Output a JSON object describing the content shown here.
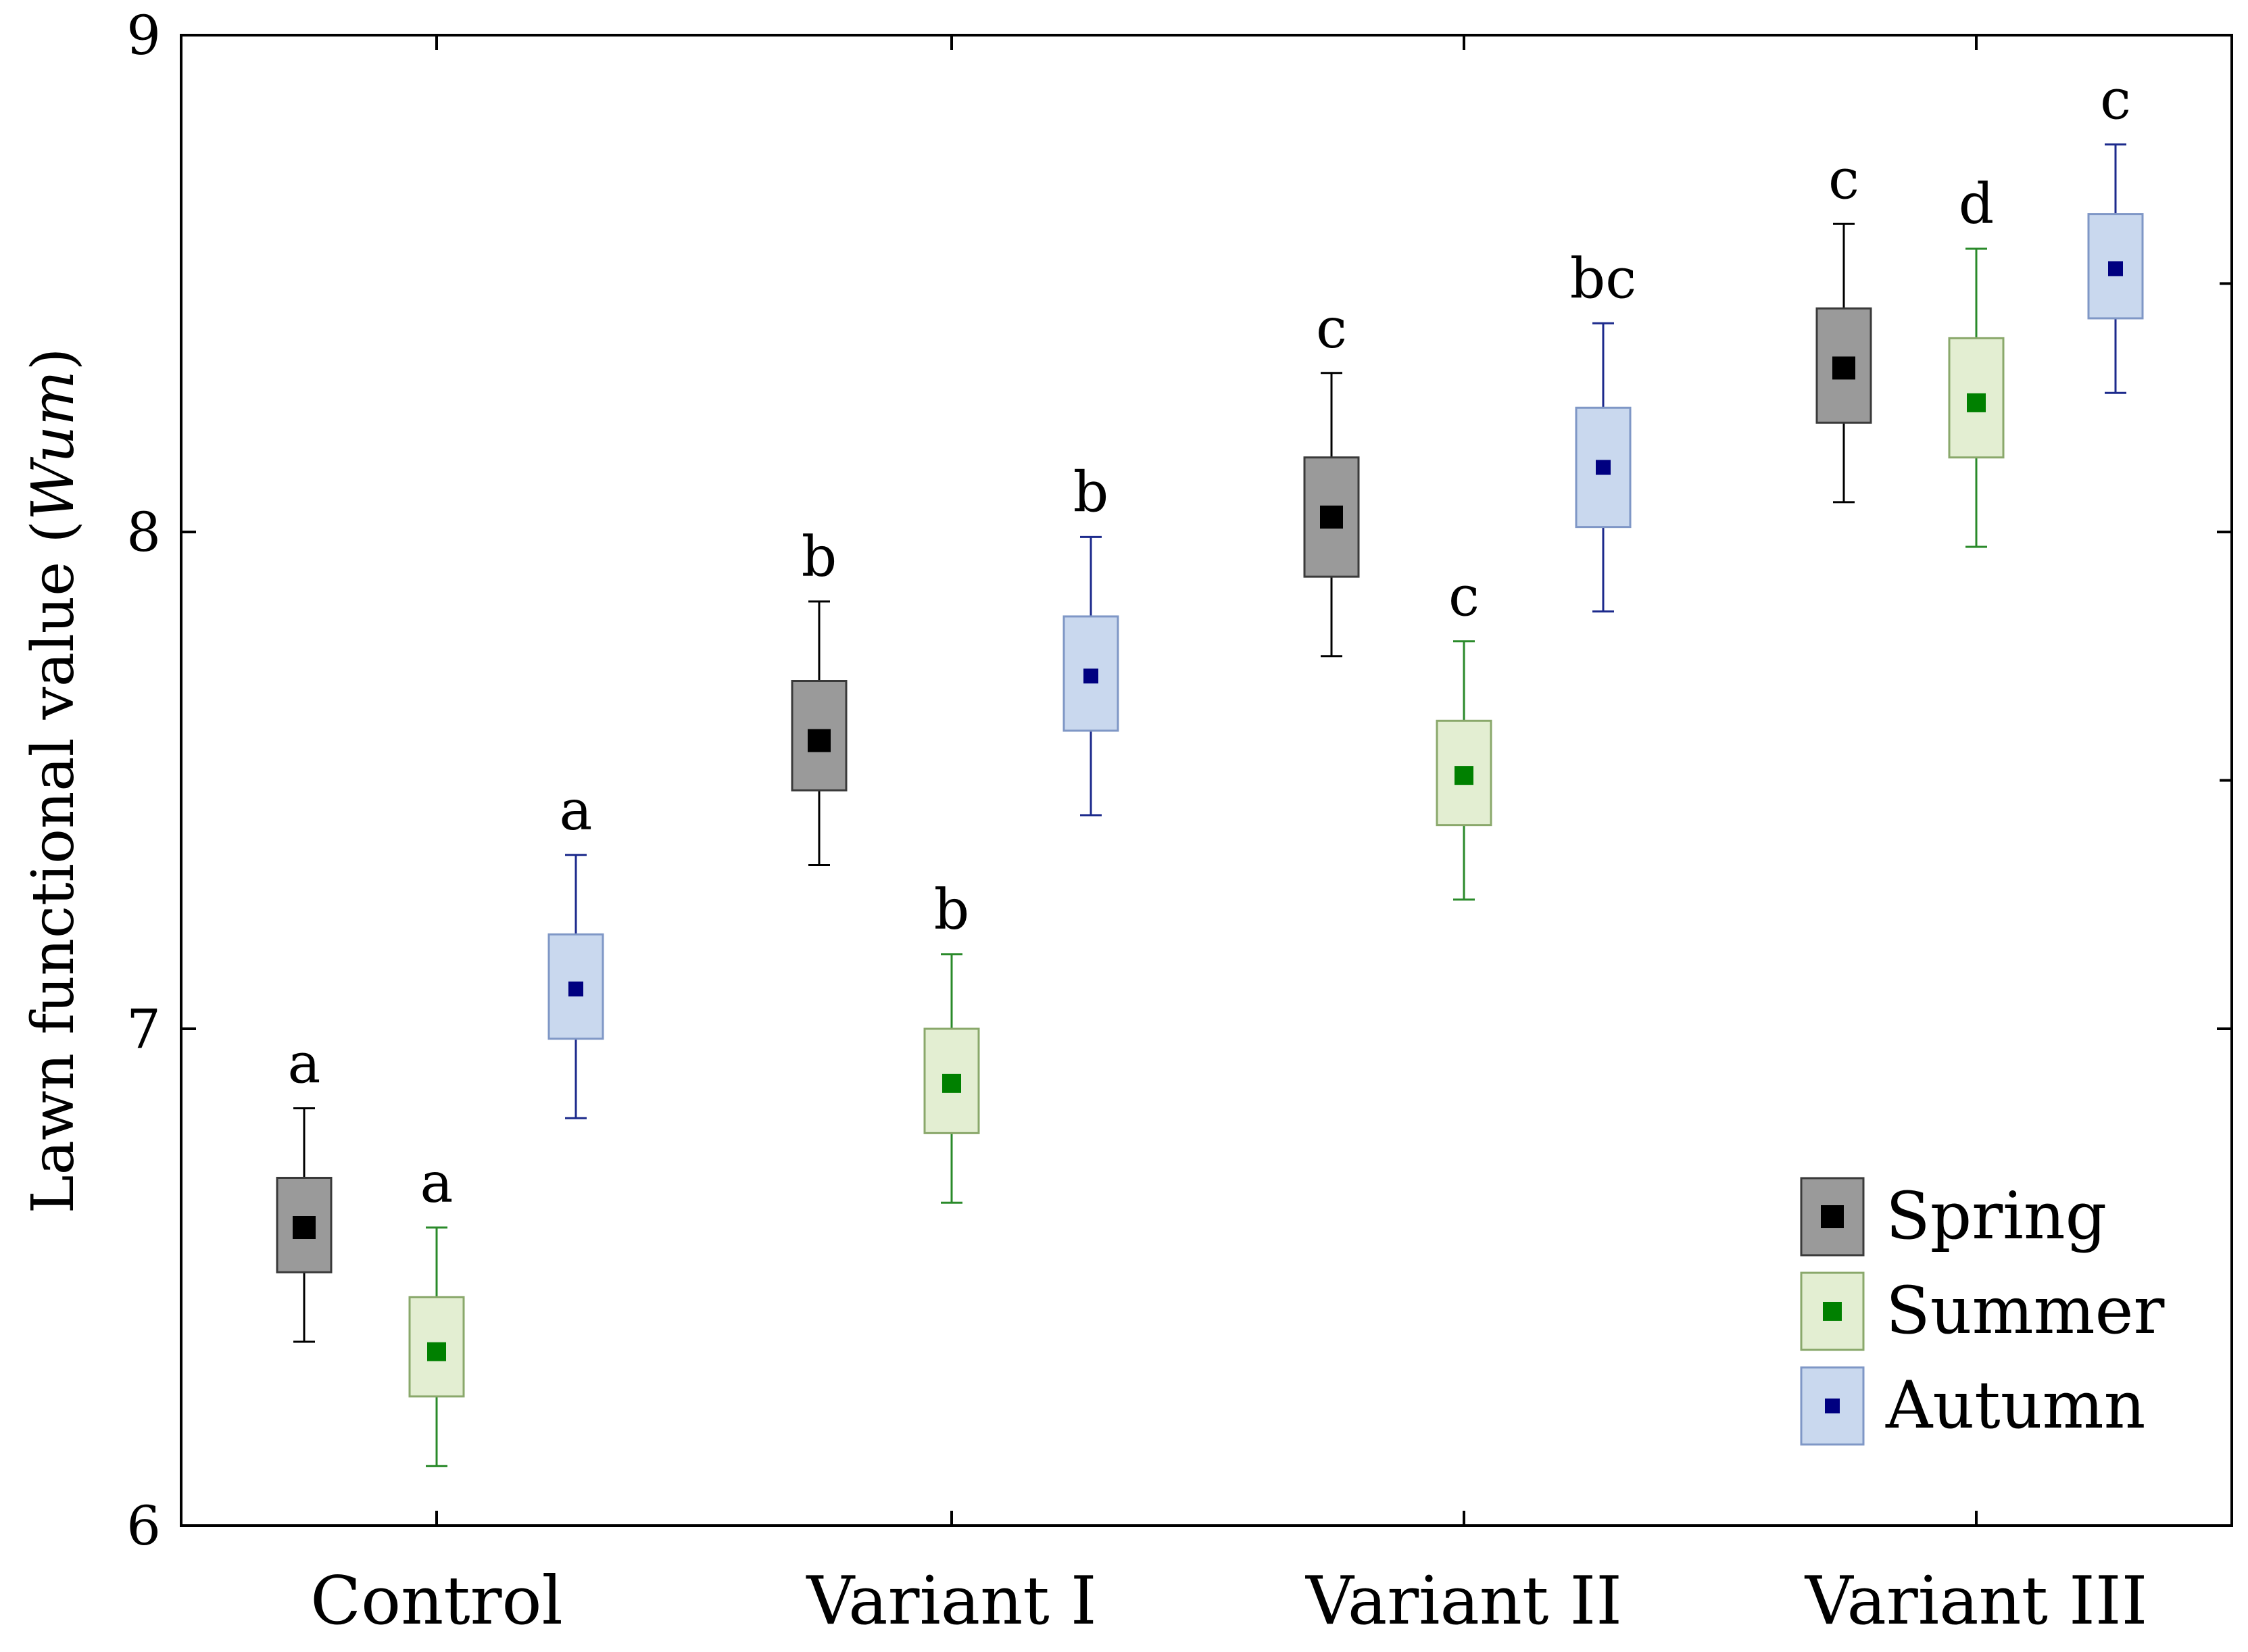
{
  "chart_data": {
    "type": "box",
    "title": "",
    "xlabel": "",
    "ylabel": "Lawn functional value (",
    "ylabel_italic": "Wum",
    "ylabel_close": ")",
    "ylim": [
      6,
      9
    ],
    "yticks": [
      6,
      7,
      8,
      9
    ],
    "grid": false,
    "legend_position": "bottom-right",
    "categories": [
      "Control",
      "Variant I",
      "Variant II",
      "Variant III"
    ],
    "series": [
      {
        "name": "Spring",
        "box_fill": "#9a9a9a",
        "box_stroke": "#3a3a3a",
        "marker_color": "#000000",
        "whisker_color": "#000000",
        "points": [
          {
            "mean": 6.6,
            "box_low": 6.51,
            "box_high": 6.7,
            "whisker_low": 6.37,
            "whisker_high": 6.84,
            "letter": "a"
          },
          {
            "mean": 7.58,
            "box_low": 7.48,
            "box_high": 7.7,
            "whisker_low": 7.33,
            "whisker_high": 7.86,
            "letter": "b"
          },
          {
            "mean": 8.03,
            "box_low": 7.91,
            "box_high": 8.15,
            "whisker_low": 7.75,
            "whisker_high": 8.32,
            "letter": "c"
          },
          {
            "mean": 8.33,
            "box_low": 8.22,
            "box_high": 8.45,
            "whisker_low": 8.06,
            "whisker_high": 8.62,
            "letter": "c"
          }
        ]
      },
      {
        "name": "Summer",
        "box_fill": "#e3eed2",
        "box_stroke": "#8aa86b",
        "marker_color": "#008000",
        "whisker_color": "#2a8a2a",
        "points": [
          {
            "mean": 6.35,
            "box_low": 6.26,
            "box_high": 6.46,
            "whisker_low": 6.12,
            "whisker_high": 6.6,
            "letter": "a"
          },
          {
            "mean": 6.89,
            "box_low": 6.79,
            "box_high": 7.0,
            "whisker_low": 6.65,
            "whisker_high": 7.15,
            "letter": "b"
          },
          {
            "mean": 7.51,
            "box_low": 7.41,
            "box_high": 7.62,
            "whisker_low": 7.26,
            "whisker_high": 7.78,
            "letter": "c"
          },
          {
            "mean": 8.26,
            "box_low": 8.15,
            "box_high": 8.39,
            "whisker_low": 7.97,
            "whisker_high": 8.57,
            "letter": "d"
          }
        ]
      },
      {
        "name": "Autumn",
        "box_fill": "#c9d8ee",
        "box_stroke": "#7f97c6",
        "marker_color": "#000080",
        "whisker_color": "#1c2a8c",
        "points": [
          {
            "mean": 7.08,
            "box_low": 6.98,
            "box_high": 7.19,
            "whisker_low": 6.82,
            "whisker_high": 7.35,
            "letter": "a"
          },
          {
            "mean": 7.71,
            "box_low": 7.6,
            "box_high": 7.83,
            "whisker_low": 7.43,
            "whisker_high": 7.99,
            "letter": "b"
          },
          {
            "mean": 8.13,
            "box_low": 8.01,
            "box_high": 8.25,
            "whisker_low": 7.84,
            "whisker_high": 8.42,
            "letter": "bc"
          },
          {
            "mean": 8.53,
            "box_low": 8.43,
            "box_high": 8.64,
            "whisker_low": 8.28,
            "whisker_high": 8.78,
            "letter": "c"
          }
        ]
      }
    ]
  }
}
